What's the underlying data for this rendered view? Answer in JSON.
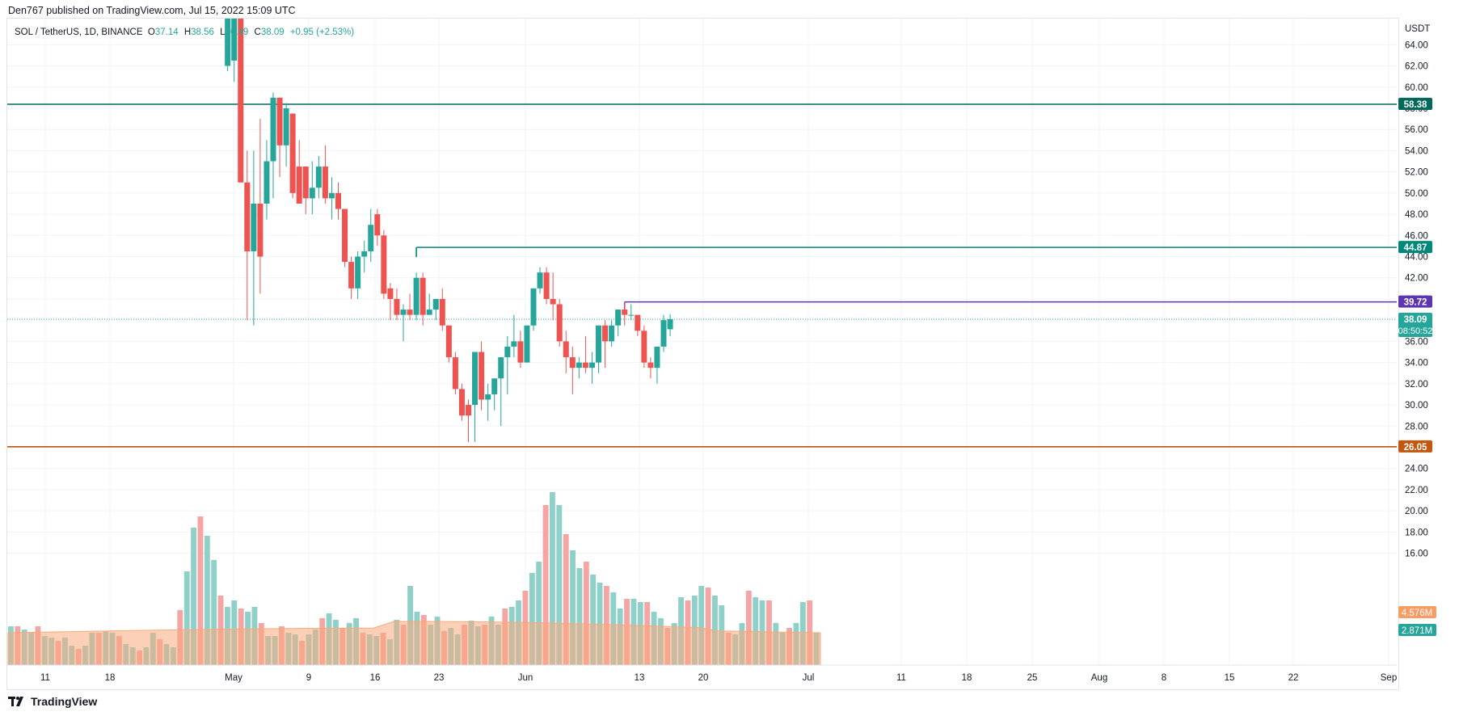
{
  "header": {
    "published": "Den767 published on TradingView.com, Jul 15, 2022 15:09 UTC"
  },
  "legend": {
    "symbol": "SOL / TetherUS, 1D, BINANCE",
    "o_label": "O",
    "o": "37.14",
    "h_label": "H",
    "h": "38.56",
    "l_label": "L",
    "l": "36.49",
    "c_label": "C",
    "c": "38.09",
    "change": "+0.95 (+2.53%)"
  },
  "footer": {
    "brand": "TradingView"
  },
  "colors": {
    "up": "#26a69a",
    "down": "#ef5350",
    "vol_up": "#8fd1c9",
    "vol_down": "#f4a5a4",
    "vol_ma": "#f9a97c",
    "line_58": "#00695c",
    "line_44": "#00897b",
    "line_39": "#5e35b1",
    "line_26": "#c4560d"
  },
  "chart_data": {
    "type": "candlestick",
    "currency": "USDT",
    "y_axis_label": "USDT",
    "ylim": [
      14.0,
      66.0
    ],
    "y_ticks": [
      "16.00",
      "18.00",
      "20.00",
      "22.00",
      "24.00",
      "26.00",
      "28.00",
      "30.00",
      "32.00",
      "34.00",
      "36.00",
      "38.00",
      "40.00",
      "42.00",
      "44.00",
      "46.00",
      "48.00",
      "50.00",
      "52.00",
      "54.00",
      "56.00",
      "58.00",
      "60.00",
      "62.00",
      "64.00"
    ],
    "x_ticks": [
      "11",
      "18",
      "May",
      "9",
      "16",
      "23",
      "Jun",
      "13",
      "20",
      "Jul",
      "11",
      "18",
      "25",
      "Aug",
      "8",
      "15",
      "22",
      "Sep"
    ],
    "candles_start": "2022-04-04",
    "candles": [
      {
        "date": "2022-05-07",
        "o": 62.0,
        "h": 68.0,
        "l": 61.5,
        "c": 68.0
      },
      {
        "date": "2022-05-08",
        "o": 62.5,
        "h": 68.0,
        "l": 60.5,
        "c": 67.0
      },
      {
        "date": "2022-05-09",
        "o": 68.0,
        "h": 68.0,
        "l": 51.0,
        "c": 51.0
      },
      {
        "date": "2022-05-10",
        "o": 51.0,
        "h": 54.0,
        "l": 38.0,
        "c": 44.5
      },
      {
        "date": "2022-05-11",
        "o": 44.5,
        "h": 54.0,
        "l": 37.5,
        "c": 49.0
      },
      {
        "date": "2022-05-12",
        "o": 49.0,
        "h": 57.0,
        "l": 40.5,
        "c": 44.0
      },
      {
        "date": "2022-05-13",
        "o": 49.0,
        "h": 55.0,
        "l": 47.5,
        "c": 53.0
      },
      {
        "date": "2022-05-14",
        "o": 53.0,
        "h": 59.5,
        "l": 49.5,
        "c": 59.0
      },
      {
        "date": "2022-05-15",
        "o": 59.0,
        "h": 59.0,
        "l": 51.5,
        "c": 54.5
      },
      {
        "date": "2022-05-16",
        "o": 54.5,
        "h": 58.5,
        "l": 52.5,
        "c": 58.0
      },
      {
        "date": "2022-05-17",
        "o": 57.5,
        "h": 57.5,
        "l": 49.5,
        "c": 50.0
      },
      {
        "date": "2022-05-18",
        "o": 52.5,
        "h": 55.0,
        "l": 49.0,
        "c": 49.0
      },
      {
        "date": "2022-05-19",
        "o": 52.5,
        "h": 52.5,
        "l": 48.0,
        "c": 49.5
      },
      {
        "date": "2022-05-20",
        "o": 49.5,
        "h": 53.0,
        "l": 48.0,
        "c": 50.5
      },
      {
        "date": "2022-05-21",
        "o": 50.5,
        "h": 53.5,
        "l": 49.5,
        "c": 52.5
      },
      {
        "date": "2022-05-22",
        "o": 52.5,
        "h": 54.5,
        "l": 49.0,
        "c": 49.5
      },
      {
        "date": "2022-05-23",
        "o": 49.5,
        "h": 51.5,
        "l": 47.5,
        "c": 50.0
      },
      {
        "date": "2022-05-24",
        "o": 50.0,
        "h": 51.0,
        "l": 47.5,
        "c": 48.5
      },
      {
        "date": "2022-05-25",
        "o": 48.5,
        "h": 48.5,
        "l": 43.0,
        "c": 43.5
      },
      {
        "date": "2022-05-26",
        "o": 43.5,
        "h": 44.0,
        "l": 40.0,
        "c": 41.0
      },
      {
        "date": "2022-05-27",
        "o": 41.0,
        "h": 44.5,
        "l": 40.0,
        "c": 44.0
      },
      {
        "date": "2022-05-28",
        "o": 44.0,
        "h": 45.5,
        "l": 42.5,
        "c": 44.5
      },
      {
        "date": "2022-05-29",
        "o": 44.5,
        "h": 48.5,
        "l": 43.5,
        "c": 47.0
      },
      {
        "date": "2022-05-30",
        "o": 48.0,
        "h": 48.5,
        "l": 45.0,
        "c": 46.0
      },
      {
        "date": "2022-05-31",
        "o": 46.0,
        "h": 46.5,
        "l": 40.0,
        "c": 40.5
      },
      {
        "date": "2022-06-01",
        "o": 41.0,
        "h": 41.5,
        "l": 38.0,
        "c": 40.0
      },
      {
        "date": "2022-06-02",
        "o": 40.0,
        "h": 41.0,
        "l": 38.0,
        "c": 38.5
      },
      {
        "date": "2022-06-03",
        "o": 38.5,
        "h": 39.5,
        "l": 36.0,
        "c": 39.0
      },
      {
        "date": "2022-06-04",
        "o": 39.0,
        "h": 40.5,
        "l": 38.0,
        "c": 38.5
      },
      {
        "date": "2022-06-05",
        "o": 38.5,
        "h": 42.5,
        "l": 38.0,
        "c": 42.0
      },
      {
        "date": "2022-06-06",
        "o": 42.0,
        "h": 42.5,
        "l": 37.5,
        "c": 38.5
      },
      {
        "date": "2022-06-07",
        "o": 38.5,
        "h": 40.5,
        "l": 38.5,
        "c": 39.0
      },
      {
        "date": "2022-06-08",
        "o": 39.0,
        "h": 40.0,
        "l": 38.0,
        "c": 40.0
      },
      {
        "date": "2022-06-09",
        "o": 40.0,
        "h": 41.0,
        "l": 37.0,
        "c": 37.5
      },
      {
        "date": "2022-06-10",
        "o": 37.5,
        "h": 37.5,
        "l": 34.0,
        "c": 34.5
      },
      {
        "date": "2022-06-11",
        "o": 34.5,
        "h": 35.0,
        "l": 31.0,
        "c": 31.5
      },
      {
        "date": "2022-06-12",
        "o": 31.5,
        "h": 32.0,
        "l": 28.5,
        "c": 29.0
      },
      {
        "date": "2022-06-13",
        "o": 30.0,
        "h": 30.5,
        "l": 26.5,
        "c": 29.0
      },
      {
        "date": "2022-06-14",
        "o": 30.0,
        "h": 35.0,
        "l": 26.5,
        "c": 35.0
      },
      {
        "date": "2022-06-15",
        "o": 35.0,
        "h": 36.0,
        "l": 29.5,
        "c": 30.5
      },
      {
        "date": "2022-06-16",
        "o": 30.5,
        "h": 32.0,
        "l": 28.5,
        "c": 31.0
      },
      {
        "date": "2022-06-17",
        "o": 31.0,
        "h": 32.0,
        "l": 29.5,
        "c": 32.5
      },
      {
        "date": "2022-06-18",
        "o": 32.5,
        "h": 34.5,
        "l": 28.0,
        "c": 34.5
      },
      {
        "date": "2022-06-19",
        "o": 34.5,
        "h": 36.5,
        "l": 31.0,
        "c": 35.5
      },
      {
        "date": "2022-06-20",
        "o": 35.5,
        "h": 38.5,
        "l": 34.5,
        "c": 36.0
      },
      {
        "date": "2022-06-21",
        "o": 36.0,
        "h": 37.0,
        "l": 33.5,
        "c": 34.0
      },
      {
        "date": "2022-06-22",
        "o": 34.0,
        "h": 37.5,
        "l": 34.0,
        "c": 37.5
      },
      {
        "date": "2022-06-23",
        "o": 37.5,
        "h": 41.0,
        "l": 37.0,
        "c": 41.0
      },
      {
        "date": "2022-06-24",
        "o": 41.0,
        "h": 43.0,
        "l": 40.5,
        "c": 42.5
      },
      {
        "date": "2022-06-25",
        "o": 42.5,
        "h": 43.0,
        "l": 39.5,
        "c": 40.0
      },
      {
        "date": "2022-06-26",
        "o": 40.0,
        "h": 42.5,
        "l": 38.0,
        "c": 39.5
      },
      {
        "date": "2022-06-27",
        "o": 39.5,
        "h": 40.0,
        "l": 35.5,
        "c": 36.0
      },
      {
        "date": "2022-06-28",
        "o": 36.0,
        "h": 37.0,
        "l": 33.0,
        "c": 34.5
      },
      {
        "date": "2022-06-29",
        "o": 34.5,
        "h": 35.5,
        "l": 31.0,
        "c": 33.5
      },
      {
        "date": "2022-06-30",
        "o": 33.5,
        "h": 34.5,
        "l": 32.5,
        "c": 34.0
      },
      {
        "date": "2022-07-01",
        "o": 34.0,
        "h": 36.5,
        "l": 33.0,
        "c": 33.5
      },
      {
        "date": "2022-07-02",
        "o": 33.5,
        "h": 35.0,
        "l": 32.0,
        "c": 34.0
      },
      {
        "date": "2022-07-03",
        "o": 34.0,
        "h": 37.5,
        "l": 33.0,
        "c": 37.5
      },
      {
        "date": "2022-07-04",
        "o": 37.5,
        "h": 38.0,
        "l": 33.5,
        "c": 36.0
      },
      {
        "date": "2022-07-05",
        "o": 36.0,
        "h": 38.0,
        "l": 35.5,
        "c": 37.5
      },
      {
        "date": "2022-07-06",
        "o": 37.5,
        "h": 39.0,
        "l": 36.5,
        "c": 39.0
      },
      {
        "date": "2022-07-07",
        "o": 39.0,
        "h": 39.72,
        "l": 37.5,
        "c": 38.5
      },
      {
        "date": "2022-07-08",
        "o": 38.5,
        "h": 39.5,
        "l": 38.0,
        "c": 38.5
      },
      {
        "date": "2022-07-09",
        "o": 38.5,
        "h": 38.5,
        "l": 36.5,
        "c": 37.0
      },
      {
        "date": "2022-07-10",
        "o": 37.0,
        "h": 37.5,
        "l": 33.5,
        "c": 34.0
      },
      {
        "date": "2022-07-11",
        "o": 34.0,
        "h": 34.5,
        "l": 32.5,
        "c": 33.5
      },
      {
        "date": "2022-07-12",
        "o": 33.5,
        "h": 35.5,
        "l": 32.0,
        "c": 35.5
      },
      {
        "date": "2022-07-13",
        "o": 35.5,
        "h": 38.5,
        "l": 35.0,
        "c": 38.0
      },
      {
        "date": "2022-07-14",
        "o": 37.14,
        "h": 38.56,
        "l": 36.49,
        "c": 38.09
      }
    ],
    "volume_labels": [
      "4.576M",
      "2.871M"
    ],
    "horizontal_levels": [
      {
        "value": 58.38,
        "label": "58.38",
        "color": "#00695c",
        "from": "2022-04-01"
      },
      {
        "value": 44.87,
        "label": "44.87",
        "color": "#00897b",
        "from": "2022-06-05"
      },
      {
        "value": 39.72,
        "label": "39.72",
        "color": "#5e35b1",
        "from": "2022-07-07"
      },
      {
        "value": 26.05,
        "label": "26.05",
        "color": "#c4560d",
        "from": "2022-04-01"
      }
    ],
    "last_price": {
      "value": 38.09,
      "label": "38.09",
      "countdown": "08:50:52"
    }
  }
}
